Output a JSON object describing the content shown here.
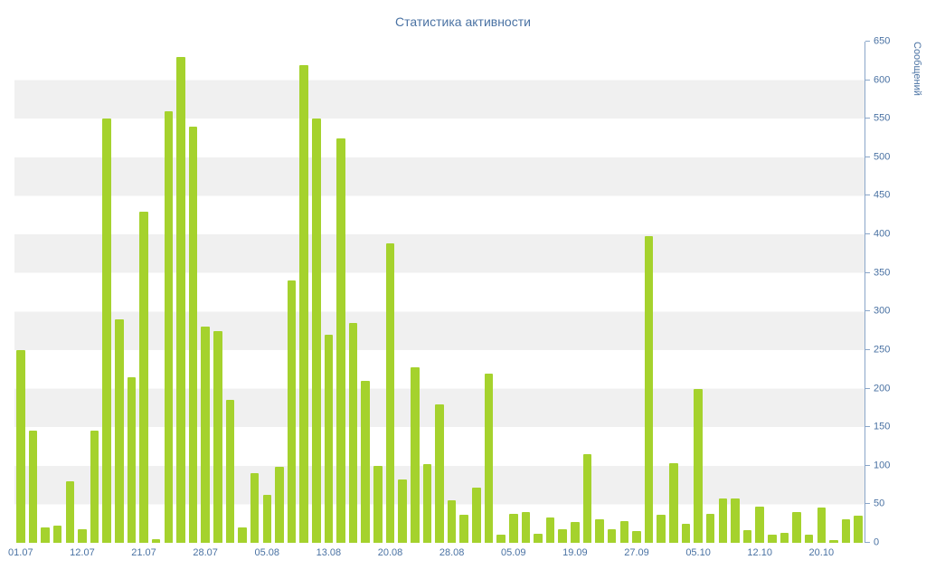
{
  "chart_data": {
    "type": "bar",
    "title": "Статистика активности",
    "ylabel": "Сообщений",
    "xlabel": "",
    "ylim": [
      0,
      650
    ],
    "ytick_step": 50,
    "yaxis_side": "right",
    "grid": "horizontal-stripe-bands",
    "legend": "none",
    "x_tick_labels": [
      "01.07",
      "12.07",
      "21.07",
      "28.07",
      "05.08",
      "13.08",
      "20.08",
      "28.08",
      "05.09",
      "19.09",
      "27.09",
      "05.10",
      "12.10",
      "20.10"
    ],
    "x_label_every": 5,
    "values": [
      250,
      145,
      20,
      22,
      80,
      18,
      145,
      550,
      290,
      215,
      430,
      5,
      560,
      630,
      540,
      280,
      275,
      185,
      20,
      90,
      62,
      98,
      340,
      620,
      550,
      270,
      525,
      285,
      210,
      100,
      388,
      82,
      228,
      102,
      180,
      55,
      36,
      72,
      220,
      10,
      38,
      40,
      12,
      33,
      18,
      27,
      115,
      30,
      18,
      28,
      15,
      398,
      36,
      103,
      25,
      200,
      38,
      58,
      57,
      16,
      47,
      10,
      13,
      40,
      10,
      46,
      4,
      30,
      35
    ],
    "colors": {
      "bar": "#a5d22d",
      "text": "#4a72a3",
      "axis_line": "#8aa6c9",
      "band": "#f0f0f0",
      "background": "#ffffff"
    }
  }
}
